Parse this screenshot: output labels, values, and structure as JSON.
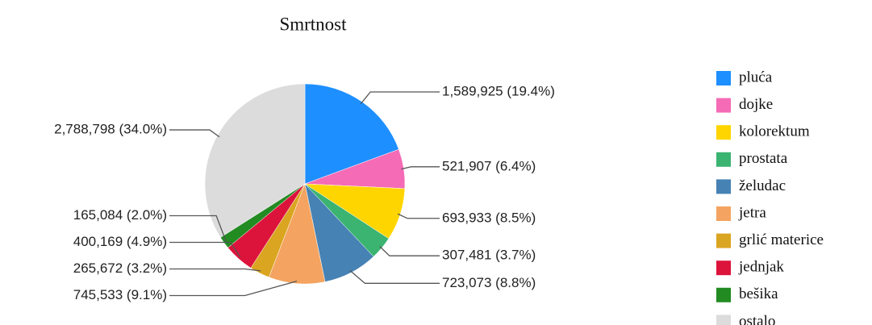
{
  "chart_data": {
    "type": "pie",
    "title": "Smrtnost",
    "categories": [
      "pluća",
      "dojke",
      "kolorektum",
      "prostata",
      "želudac",
      "jetra",
      "grlić materice",
      "jednjak",
      "bešika",
      "ostalo"
    ],
    "values": [
      1589925,
      521907,
      693933,
      307481,
      723073,
      745533,
      265672,
      400169,
      165084,
      2788798
    ],
    "value_labels": [
      "1,589,925 (19.4%)",
      "521,907 (6.4%)",
      "693,933 (8.5%)",
      "307,481 (3.7%)",
      "723,073 (8.8%)",
      "745,533 (9.1%)",
      "265,672 (3.2%)",
      "400,169 (4.9%)",
      "165,084 (2.0%)",
      "2,788,798 (34.0%)"
    ],
    "colors": [
      "#1e8fff",
      "#f56bb5",
      "#ffd500",
      "#3bb371",
      "#4682b4",
      "#f4a460",
      "#daa520",
      "#dc143c",
      "#228b22",
      "#dcdcdc"
    ],
    "legend": "right"
  }
}
